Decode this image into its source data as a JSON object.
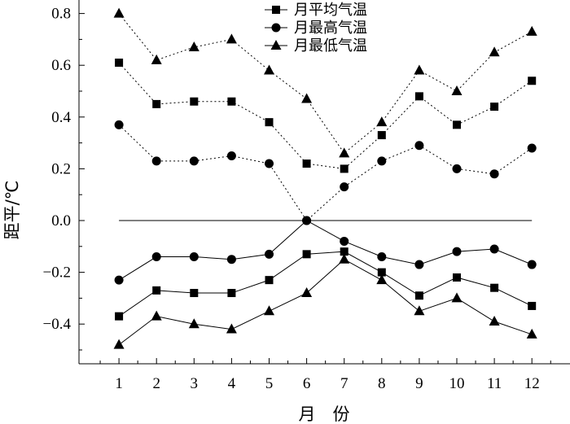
{
  "chart_data": {
    "type": "line",
    "xlabel": "月　份",
    "ylabel": "距平/℃",
    "x": [
      1,
      2,
      3,
      4,
      5,
      6,
      7,
      8,
      9,
      10,
      11,
      12
    ],
    "xlim": [
      0,
      12.9
    ],
    "ylim": [
      -0.56,
      0.85
    ],
    "yticks": [
      -0.4,
      -0.2,
      0.0,
      0.2,
      0.4,
      0.6,
      0.8
    ],
    "ytick_labels": [
      "−0.4",
      "−0.2",
      "0.0",
      "0.2",
      "0.4",
      "0.6",
      "0.8"
    ],
    "xtick_labels": [
      "1",
      "2",
      "3",
      "4",
      "5",
      "6",
      "7",
      "8",
      "9",
      "10",
      "11",
      "12"
    ],
    "zero_line": true,
    "legend": {
      "position": "top-center",
      "entries": [
        {
          "label": "月平均气温",
          "marker": "square"
        },
        {
          "label": "月最高气温",
          "marker": "circle"
        },
        {
          "label": "月最低气温",
          "marker": "triangle"
        }
      ]
    },
    "series": [
      {
        "name": "月平均气温",
        "marker": "square",
        "line": "dotted",
        "values": [
          0.61,
          0.45,
          0.46,
          0.46,
          0.38,
          0.22,
          0.2,
          0.33,
          0.48,
          0.37,
          0.44,
          0.54
        ]
      },
      {
        "name": "月最高气温",
        "marker": "circle",
        "line": "dotted",
        "values": [
          0.37,
          0.23,
          0.23,
          0.25,
          0.22,
          0.0,
          0.13,
          0.23,
          0.29,
          0.2,
          0.18,
          0.28
        ]
      },
      {
        "name": "月最低气温",
        "marker": "triangle",
        "line": "dotted",
        "values": [
          0.8,
          0.62,
          0.67,
          0.7,
          0.58,
          0.47,
          0.26,
          0.38,
          0.58,
          0.5,
          0.65,
          0.73
        ]
      },
      {
        "name": "月平均气温",
        "marker": "square",
        "line": "solid",
        "values": [
          -0.37,
          -0.27,
          -0.28,
          -0.28,
          -0.23,
          -0.13,
          -0.12,
          -0.2,
          -0.29,
          -0.22,
          -0.26,
          -0.33
        ]
      },
      {
        "name": "月最高气温",
        "marker": "circle",
        "line": "solid",
        "values": [
          -0.23,
          -0.14,
          -0.14,
          -0.15,
          -0.13,
          0.0,
          -0.08,
          -0.14,
          -0.17,
          -0.12,
          -0.11,
          -0.17
        ]
      },
      {
        "name": "月最低气温",
        "marker": "triangle",
        "line": "solid",
        "values": [
          -0.48,
          -0.37,
          -0.4,
          -0.42,
          -0.35,
          -0.28,
          -0.15,
          -0.23,
          -0.35,
          -0.3,
          -0.39,
          -0.44
        ]
      }
    ]
  }
}
